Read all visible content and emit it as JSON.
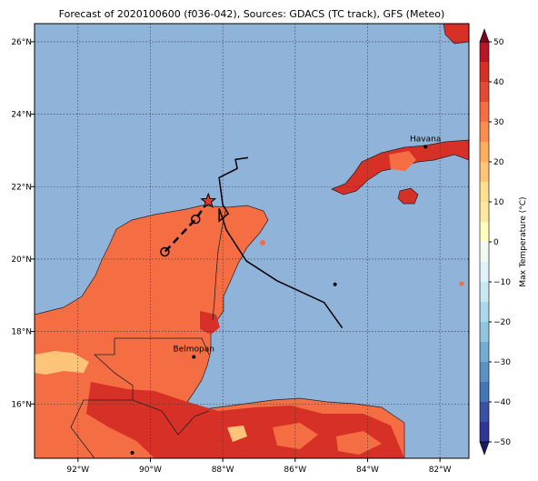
{
  "title": "Forecast of 2020100600 (f036-042), Sources: GDACS (TC track), GFS (Meteo)",
  "map": {
    "lon_range": [
      -93.2,
      -81.2
    ],
    "lat_range": [
      14.5,
      26.5
    ],
    "lon_ticks": [
      {
        "value": -92,
        "label": "92°W"
      },
      {
        "value": -90,
        "label": "90°W"
      },
      {
        "value": -88,
        "label": "88°W"
      },
      {
        "value": -86,
        "label": "86°W"
      },
      {
        "value": -84,
        "label": "84°W"
      },
      {
        "value": -82,
        "label": "82°W"
      }
    ],
    "lat_ticks": [
      {
        "value": 16,
        "label": "16°N"
      },
      {
        "value": 18,
        "label": "18°N"
      },
      {
        "value": 20,
        "label": "20°N"
      },
      {
        "value": 22,
        "label": "22°N"
      },
      {
        "value": 24,
        "label": "24°N"
      },
      {
        "value": 26,
        "label": "26°N"
      }
    ],
    "gridlines": true,
    "water_color": "#8fb3d9"
  },
  "cities": [
    {
      "name": "Havana",
      "lon": -82.4,
      "lat": 23.1
    },
    {
      "name": "Belmopan",
      "lon": -88.8,
      "lat": 17.3
    }
  ],
  "track": {
    "observed": [
      [
        -87.3,
        22.8
      ],
      [
        -87.65,
        22.75
      ],
      [
        -87.6,
        22.5
      ],
      [
        -88.1,
        22.25
      ],
      [
        -88.0,
        21.5
      ],
      [
        -87.85,
        21.25
      ],
      [
        -88.1,
        21.05
      ],
      [
        -88.1,
        21.4
      ],
      [
        -87.9,
        20.8
      ],
      [
        -87.35,
        19.95
      ],
      [
        -86.5,
        19.4
      ],
      [
        -85.2,
        18.8
      ],
      [
        -84.7,
        18.1
      ]
    ],
    "current": {
      "lon": -88.4,
      "lat": 21.6
    },
    "forecast": [
      [
        -88.4,
        21.6
      ],
      [
        -88.75,
        21.1
      ],
      [
        -89.6,
        20.2
      ]
    ],
    "forecast_markers": [
      {
        "lon": -88.75,
        "lat": 21.1
      },
      {
        "lon": -89.6,
        "lat": 20.2
      }
    ]
  },
  "colorbar": {
    "label": "Max Temperature (°C)",
    "min": -50,
    "max": 50,
    "tick_values": [
      -50,
      -40,
      -30,
      -20,
      -10,
      0,
      10,
      20,
      30,
      40,
      50
    ],
    "tick_labels": [
      "−50",
      "−40",
      "−30",
      "−20",
      "−10",
      "0",
      "10",
      "20",
      "30",
      "40",
      "50"
    ],
    "levels": [
      -50,
      -45,
      -40,
      -35,
      -30,
      -25,
      -20,
      -15,
      -10,
      -5,
      0,
      5,
      10,
      15,
      20,
      25,
      30,
      35,
      40,
      45,
      50
    ],
    "colors": [
      "#313695",
      "#3b52a4",
      "#4575b4",
      "#5e91c2",
      "#74add1",
      "#91c5dd",
      "#abd9e9",
      "#c9e8f1",
      "#e0f3f8",
      "#f0f9f4",
      "#ffffbf",
      "#fee9a2",
      "#fee090",
      "#fdc47a",
      "#fdae61",
      "#f88d52",
      "#f46d43",
      "#e34a33",
      "#d73027",
      "#b81627",
      "#a50026"
    ],
    "under_color": "#1a1a66",
    "over_color": "#800020"
  },
  "fills": {
    "land_warm": "#f46d43",
    "land_hot": "#d73027",
    "land_mild": "#fdae61",
    "land_cool": "#fdc47a"
  }
}
